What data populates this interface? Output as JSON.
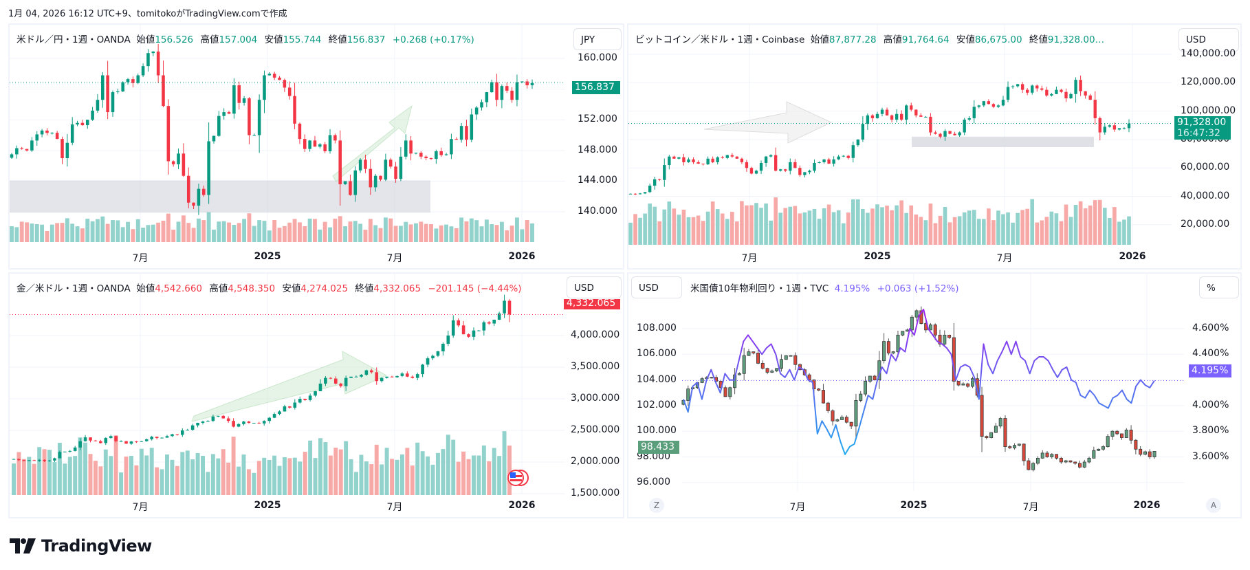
{
  "caption": "1月 04, 2026 16:12 UTC+9、tomitokoがTradingView.comで作成",
  "brand": "TradingView",
  "colors": {
    "up": "#089981",
    "down": "#f23645",
    "vol_up": "#92d2cc",
    "vol_down": "#f7a9a7",
    "yield": "#7b61ff",
    "dxy_up": "#5f9e7f",
    "dxy_down": "#d9483b"
  },
  "panels": {
    "usdjpy": {
      "symbol": "米ドル／円・1週・OANDA",
      "open_label": "始値",
      "open": "156.526",
      "high_label": "高値",
      "high": "157.004",
      "low_label": "安値",
      "low": "155.744",
      "close_label": "終値",
      "close": "156.837",
      "change": "+0.268 (+0.17%)",
      "currency": "JPY",
      "last_price_tag": "156.837",
      "price_axis": [
        "160.000",
        "156.000",
        "152.000",
        "148.000",
        "144.000",
        "140.000"
      ],
      "time_axis": [
        "7月",
        "2025",
        "7月",
        "2026"
      ]
    },
    "btcusd": {
      "symbol": "ビットコイン／米ドル・1週・Coinbase",
      "open_label": "始値",
      "open": "87,877.28",
      "high_label": "高値",
      "high": "91,764.64",
      "low_label": "安値",
      "low": "86,675.00",
      "close_label": "終値",
      "close": "91,328.00…",
      "currency": "USD",
      "last_price_tag": "91,328.00",
      "countdown": "16:47:32",
      "price_axis": [
        "140,000.00",
        "120,000.00",
        "100,000.00",
        "80,000.00",
        "60,000.00",
        "40,000.00",
        "20,000.00"
      ],
      "time_axis": [
        "7月",
        "2025",
        "7月",
        "2026"
      ]
    },
    "xauusd": {
      "symbol": "金／米ドル・1週・OANDA",
      "open_label": "始値",
      "open": "4,542.660",
      "high_label": "高値",
      "high": "4,548.350",
      "low_label": "安値",
      "low": "4,274.025",
      "close_label": "終値",
      "close": "4,332.065",
      "change": "−201.145 (−4.44%)",
      "currency": "USD",
      "last_price_tag": "4,332.065",
      "price_axis": [
        "4,000.000",
        "3,500.000",
        "3,000.000",
        "2,500.000",
        "2,000.000",
        "1,500.000"
      ],
      "time_axis": [
        "7月",
        "2025",
        "7月",
        "2026"
      ]
    },
    "us10y": {
      "symbol": "米国債10年物利回り・1週・TVC",
      "value": "4.195%",
      "change": "+0.063 (+1.52%)",
      "left_currency": "USD",
      "right_unit": "%",
      "left_price_tag": "98.433",
      "right_price_tag": "4.195%",
      "left_axis": [
        "108.000",
        "106.000",
        "104.000",
        "102.000",
        "100.000",
        "98.000",
        "96.000"
      ],
      "right_axis": [
        "4.600%",
        "4.400%",
        "4.000%",
        "3.800%",
        "3.600%"
      ],
      "time_axis": [
        "7月",
        "2025",
        "7月",
        "2026"
      ],
      "z_button": "Z",
      "a_button": "A"
    }
  },
  "chart_data": [
    {
      "type": "candlestick",
      "title": "米ドル／円・1週・OANDA",
      "ylim": [
        137,
        163
      ],
      "x": "weekly, Jan 2024 – Jan 2026",
      "close": [
        147.5,
        148.3,
        148.2,
        148.0,
        149.3,
        150.1,
        150.6,
        150.3,
        150.3,
        149.5,
        147.0,
        149.0,
        151.4,
        151.6,
        151.3,
        152.0,
        153.2,
        154.6,
        157.8,
        153.0,
        155.6,
        155.7,
        156.9,
        157.3,
        156.8,
        157.8,
        159.0,
        160.7,
        160.9,
        157.8,
        153.8,
        146.6,
        146.2,
        147.6,
        144.7,
        141.2,
        140.8,
        143.0,
        142.2,
        149.2,
        149.9,
        152.5,
        153.0,
        152.8,
        156.5,
        154.2,
        154.8,
        150.0,
        150.0,
        154.6,
        157.8,
        158.0,
        157.5,
        157.2,
        156.2,
        155.1,
        151.5,
        149.5,
        148.2,
        149.3,
        148.5,
        148.8,
        147.9,
        150.0,
        149.3,
        143.6,
        144.0,
        142.2,
        145.4,
        146.8,
        145.6,
        143.2,
        144.7,
        144.2,
        146.8,
        145.9,
        144.3,
        147.2,
        149.3,
        147.6,
        147.7,
        147.2,
        147.0,
        146.9,
        147.9,
        147.4,
        147.5,
        149.5,
        149.4,
        151.2,
        149.4,
        152.7,
        153.6,
        154.3,
        155.6,
        156.9,
        154.6,
        156.4,
        155.8,
        154.6,
        156.9,
        157.0,
        156.5,
        156.8
      ],
      "volume_relative": "bars below price"
    },
    {
      "type": "candlestick",
      "title": "ビットコイン／米ドル・1週・Coinbase",
      "ylim": [
        0,
        145000
      ],
      "close": [
        41800,
        41500,
        42000,
        43000,
        47500,
        52000,
        51500,
        62000,
        68000,
        66500,
        67500,
        64000,
        66000,
        64000,
        63000,
        62500,
        66500,
        64000,
        67500,
        67000,
        69000,
        68000,
        66500,
        64000,
        60000,
        56000,
        58000,
        63500,
        68000,
        69000,
        58000,
        59000,
        58000,
        64000,
        60000,
        55000,
        57000,
        58000,
        63500,
        64000,
        66000,
        63000,
        66000,
        68000,
        68500,
        67000,
        76000,
        80000,
        91000,
        97000,
        95000,
        98000,
        101000,
        97000,
        94000,
        98000,
        94000,
        104000,
        101000,
        97000,
        96000,
        96000,
        85000,
        84000,
        82000,
        86000,
        84000,
        83000,
        85000,
        94000,
        95000,
        103000,
        104000,
        107000,
        105000,
        103000,
        104000,
        108000,
        117000,
        117500,
        119000,
        115000,
        113000,
        118000,
        116000,
        115000,
        111000,
        112000,
        115000,
        113500,
        109000,
        112000,
        122000,
        114000,
        111000,
        108000,
        95000,
        85000,
        89000,
        90000,
        87000,
        88000,
        88000,
        91328
      ]
    },
    {
      "type": "candlestick",
      "title": "金／米ドル・1週・OANDA",
      "ylim": [
        1300,
        4700
      ],
      "close": [
        2048,
        2030,
        2018,
        2030,
        2020,
        2035,
        2015,
        2024,
        2060,
        2160,
        2165,
        2175,
        2230,
        2330,
        2390,
        2340,
        2330,
        2300,
        2380,
        2410,
        2330,
        2330,
        2290,
        2325,
        2320,
        2330,
        2360,
        2400,
        2380,
        2385,
        2410,
        2440,
        2430,
        2500,
        2510,
        2580,
        2620,
        2640,
        2650,
        2720,
        2730,
        2690,
        2650,
        2560,
        2600,
        2640,
        2620,
        2620,
        2610,
        2650,
        2700,
        2760,
        2800,
        2880,
        2860,
        2940,
        3000,
        2980,
        3050,
        3120,
        3240,
        3330,
        3320,
        3240,
        3200,
        3330,
        3350,
        3350,
        3380,
        3450,
        3420,
        3280,
        3330,
        3350,
        3340,
        3360,
        3400,
        3350,
        3330,
        3390,
        3540,
        3640,
        3680,
        3750,
        3870,
        4000,
        4240,
        4160,
        4020,
        3980,
        4080,
        4080,
        4210,
        4190,
        4250,
        4350,
        4550,
        4332
      ],
      "volume_relative": "bars below price"
    },
    {
      "type": "line+candlestick",
      "title": "米国債10年物利回り・1週・TVC",
      "series": [
        {
          "name": "US10Y yield (%)",
          "axis": "right",
          "ylim": [
            3.55,
            4.8
          ],
          "values": [
            4.05,
            3.95,
            4.15,
            4.18,
            4.05,
            4.2,
            4.28,
            4.18,
            4.1,
            4.25,
            4.2,
            4.2,
            4.35,
            4.5,
            4.55,
            4.5,
            4.45,
            4.4,
            4.45,
            4.48,
            4.4,
            4.25,
            4.22,
            4.28,
            4.2,
            4.3,
            4.28,
            4.2,
            4.18,
            3.78,
            3.88,
            3.82,
            3.75,
            3.85,
            3.72,
            3.62,
            3.68,
            3.7,
            3.82,
            3.95,
            4.08,
            4.05,
            4.2,
            4.3,
            4.25,
            4.4,
            4.35,
            4.45,
            4.42,
            4.6,
            4.55,
            4.7,
            4.75,
            4.6,
            4.55,
            4.5,
            4.48,
            4.45,
            4.4,
            4.2,
            4.3,
            4.32,
            4.3,
            4.22,
            4.05,
            4.48,
            4.32,
            4.25,
            4.35,
            4.42,
            4.5,
            4.4,
            4.5,
            4.38,
            4.35,
            4.25,
            4.35,
            4.38,
            4.38,
            4.35,
            4.28,
            4.22,
            4.28,
            4.3,
            4.2,
            4.18,
            4.08,
            4.06,
            4.12,
            4.08,
            4.02,
            4.0,
            3.98,
            4.06,
            4.08,
            4.12,
            4.05,
            4.02,
            4.15,
            4.2,
            4.16,
            4.14,
            4.195
          ]
        },
        {
          "name": "DXY (USD)",
          "axis": "left",
          "ylim": [
            95.2,
            110.2
          ],
          "values": [
            102.4,
            103.3,
            103.4,
            103.8,
            104.1,
            104.2,
            104.2,
            103.9,
            103.4,
            102.7,
            103.4,
            104.4,
            104.5,
            105.9,
            106.2,
            106.1,
            105.3,
            104.9,
            104.6,
            104.7,
            104.9,
            105.6,
            105.9,
            105.9,
            105.2,
            104.8,
            104.4,
            104.0,
            103.3,
            103.2,
            102.2,
            101.6,
            100.8,
            100.9,
            101.1,
            100.7,
            100.4,
            102.4,
            102.9,
            103.9,
            104.3,
            104.0,
            105.5,
            107.0,
            106.1,
            106.2,
            107.5,
            107.8,
            107.9,
            108.9,
            109.4,
            108.4,
            107.9,
            108.3,
            107.5,
            106.8,
            107.5,
            107.3,
            103.9,
            103.6,
            103.7,
            103.5,
            104.1,
            102.8,
            99.6,
            99.5,
            99.9,
            100.4,
            101.0,
            98.8,
            98.7,
            98.9,
            99.0,
            97.7,
            97.0,
            97.5,
            97.9,
            98.3,
            98.0,
            98.2,
            97.9,
            97.6,
            97.7,
            97.6,
            97.5,
            97.2,
            97.6,
            97.9,
            98.5,
            98.6,
            98.8,
            99.6,
            100.0,
            99.8,
            99.5,
            100.1,
            99.3,
            98.6,
            98.2,
            98.4,
            98.0,
            98.433
          ]
        }
      ]
    }
  ]
}
